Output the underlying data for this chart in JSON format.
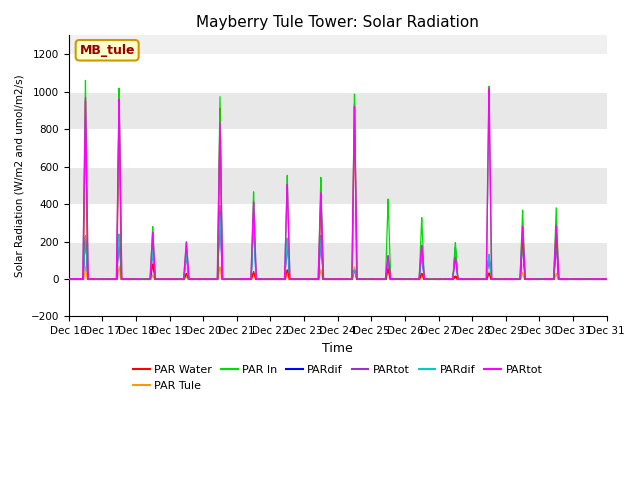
{
  "title": "Mayberry Tule Tower: Solar Radiation",
  "ylabel": "Solar Radiation (W/m2 and umol/m2/s)",
  "xlabel": "Time",
  "ylim": [
    -200,
    1300
  ],
  "yticks": [
    -200,
    0,
    200,
    400,
    600,
    800,
    1000,
    1200
  ],
  "x_labels": [
    "Dec 16",
    "Dec 17",
    "Dec 18",
    "Dec 19",
    "Dec 20",
    "Dec 21",
    "Dec 22",
    "Dec 23",
    "Dec 24",
    "Dec 25",
    "Dec 26",
    "Dec 27",
    "Dec 28",
    "Dec 29",
    "Dec 30",
    "Dec 31"
  ],
  "legend_entries": [
    {
      "label": "PAR Water",
      "color": "#ff0000"
    },
    {
      "label": "PAR Tule",
      "color": "#ff9900"
    },
    {
      "label": "PAR In",
      "color": "#00dd00"
    },
    {
      "label": "PARdif",
      "color": "#0000ff"
    },
    {
      "label": "PARtot",
      "color": "#9933cc"
    },
    {
      "label": "PARdif",
      "color": "#00cccc"
    },
    {
      "label": "PARtot",
      "color": "#ff00ff"
    }
  ],
  "textbox_label": "MB_tule",
  "textbox_color": "#ffffcc",
  "textbox_border": "#cc9900",
  "textbox_text_color": "#990000",
  "peak_heights": {
    "day16": {
      "green": 1060,
      "red": 950,
      "magenta": 970,
      "orange": 65,
      "blue": 230,
      "purple": 220,
      "cyan": 230
    },
    "day17": {
      "green": 1020,
      "red": 970,
      "magenta": 960,
      "orange": 70,
      "blue": 240,
      "purple": 235,
      "cyan": 240
    },
    "day18": {
      "green": 280,
      "red": 80,
      "magenta": 250,
      "orange": 22,
      "blue": 155,
      "purple": 200,
      "cyan": 155
    },
    "day19": {
      "green": 200,
      "red": 30,
      "magenta": 195,
      "orange": 15,
      "blue": 140,
      "purple": 145,
      "cyan": 140
    },
    "day20": {
      "green": 980,
      "red": 920,
      "magenta": 840,
      "orange": 65,
      "blue": 360,
      "purple": 395,
      "cyan": 360
    },
    "day21": {
      "green": 470,
      "red": 40,
      "magenta": 415,
      "orange": 30,
      "blue": 310,
      "purple": 305,
      "cyan": 310
    },
    "day22": {
      "green": 560,
      "red": 50,
      "magenta": 510,
      "orange": 25,
      "blue": 220,
      "purple": 215,
      "cyan": 220
    },
    "day23": {
      "green": 550,
      "red": 450,
      "magenta": 465,
      "orange": 50,
      "blue": 235,
      "purple": 225,
      "cyan": 235
    },
    "day24": {
      "green": 1000,
      "red": 950,
      "magenta": 930,
      "orange": 65,
      "blue": 50,
      "purple": 45,
      "cyan": 50
    },
    "day25": {
      "green": 430,
      "red": 50,
      "magenta": 125,
      "orange": 60,
      "blue": 110,
      "purple": 105,
      "cyan": 110
    },
    "day26": {
      "green": 330,
      "red": 30,
      "magenta": 180,
      "orange": 20,
      "blue": 155,
      "purple": 150,
      "cyan": 155
    },
    "day27": {
      "green": 195,
      "red": 15,
      "magenta": 115,
      "orange": 10,
      "blue": 170,
      "purple": 165,
      "cyan": 170
    },
    "day28": {
      "green": 1035,
      "red": 30,
      "magenta": 1020,
      "orange": 40,
      "blue": 130,
      "purple": 125,
      "cyan": 130
    },
    "day29": {
      "green": 370,
      "red": 250,
      "magenta": 280,
      "orange": 35,
      "blue": 200,
      "purple": 195,
      "cyan": 200
    },
    "day30": {
      "green": 380,
      "red": 260,
      "magenta": 285,
      "orange": 30,
      "blue": 210,
      "purple": 205,
      "cyan": 210
    },
    "day31": {
      "green": 0,
      "red": 0,
      "magenta": 0,
      "orange": 0,
      "blue": 0,
      "purple": 0,
      "cyan": 0
    }
  }
}
